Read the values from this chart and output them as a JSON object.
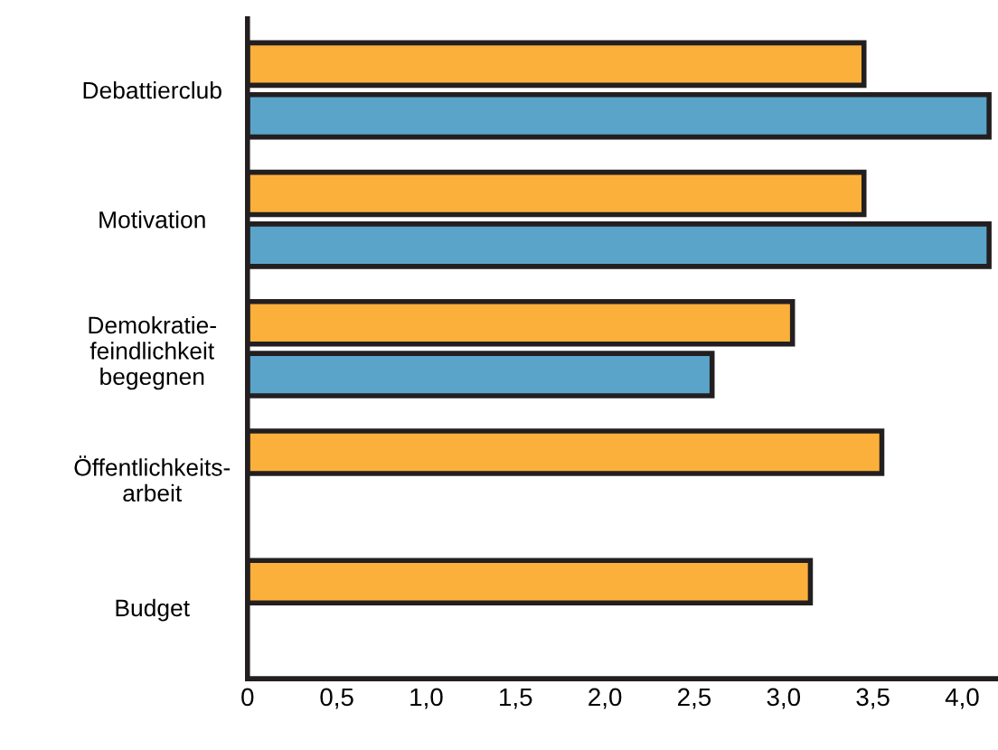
{
  "chart_data": {
    "type": "bar",
    "orientation": "horizontal",
    "categories": [
      "Debattierclub",
      "Motivation",
      "Demokratie-\nfeindlichkeit\nbegegnen",
      "Öffentlichkeits-\narbeit",
      "Budget"
    ],
    "series": [
      {
        "color": "#fbb03b",
        "values": [
          3.45,
          3.45,
          3.05,
          3.55,
          3.15
        ]
      },
      {
        "color": "#5aa4c9",
        "values": [
          4.15,
          4.15,
          2.6,
          null,
          null
        ]
      }
    ],
    "xlim": [
      0,
      4.2
    ],
    "xticks": [
      {
        "value": 0,
        "label": "0"
      },
      {
        "value": 0.5,
        "label": "0,5"
      },
      {
        "value": 1.0,
        "label": "1,0"
      },
      {
        "value": 1.5,
        "label": "1,5"
      },
      {
        "value": 2.0,
        "label": "2,0"
      },
      {
        "value": 2.5,
        "label": "2,5"
      },
      {
        "value": 3.0,
        "label": "3,0"
      },
      {
        "value": 3.5,
        "label": "3,5"
      },
      {
        "value": 4.0,
        "label": "4,0"
      }
    ],
    "grid": false,
    "legend": false
  }
}
